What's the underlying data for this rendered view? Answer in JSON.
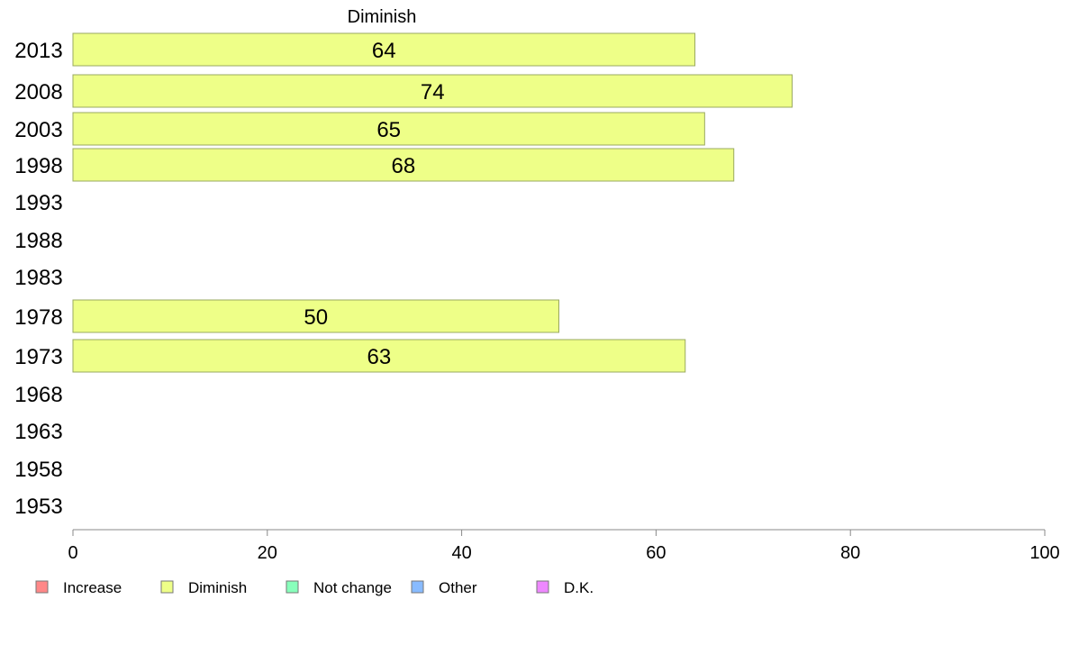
{
  "chart_data": {
    "type": "bar",
    "orientation": "horizontal",
    "title": "Diminish",
    "categories": [
      "2013",
      "2008",
      "2003",
      "1998",
      "1993",
      "1988",
      "1983",
      "1978",
      "1973",
      "1968",
      "1963",
      "1958",
      "1953"
    ],
    "series": [
      {
        "name": "Diminish",
        "color": "#eeff88",
        "values": [
          64,
          74,
          65,
          68,
          null,
          null,
          null,
          50,
          63,
          null,
          null,
          null,
          null
        ]
      }
    ],
    "xlim": [
      0,
      100
    ],
    "xticks": [
      "0",
      "20",
      "40",
      "60",
      "80",
      "100"
    ],
    "grid": false,
    "legend": {
      "placement": "bottom-left",
      "entries": [
        {
          "label": "Increase",
          "color": "#ff8888"
        },
        {
          "label": "Diminish",
          "color": "#eeff88"
        },
        {
          "label": "Not change",
          "color": "#88ffbb"
        },
        {
          "label": "Other",
          "color": "#88bbff"
        },
        {
          "label": "D.K.",
          "color": "#ee88ff"
        }
      ]
    }
  }
}
